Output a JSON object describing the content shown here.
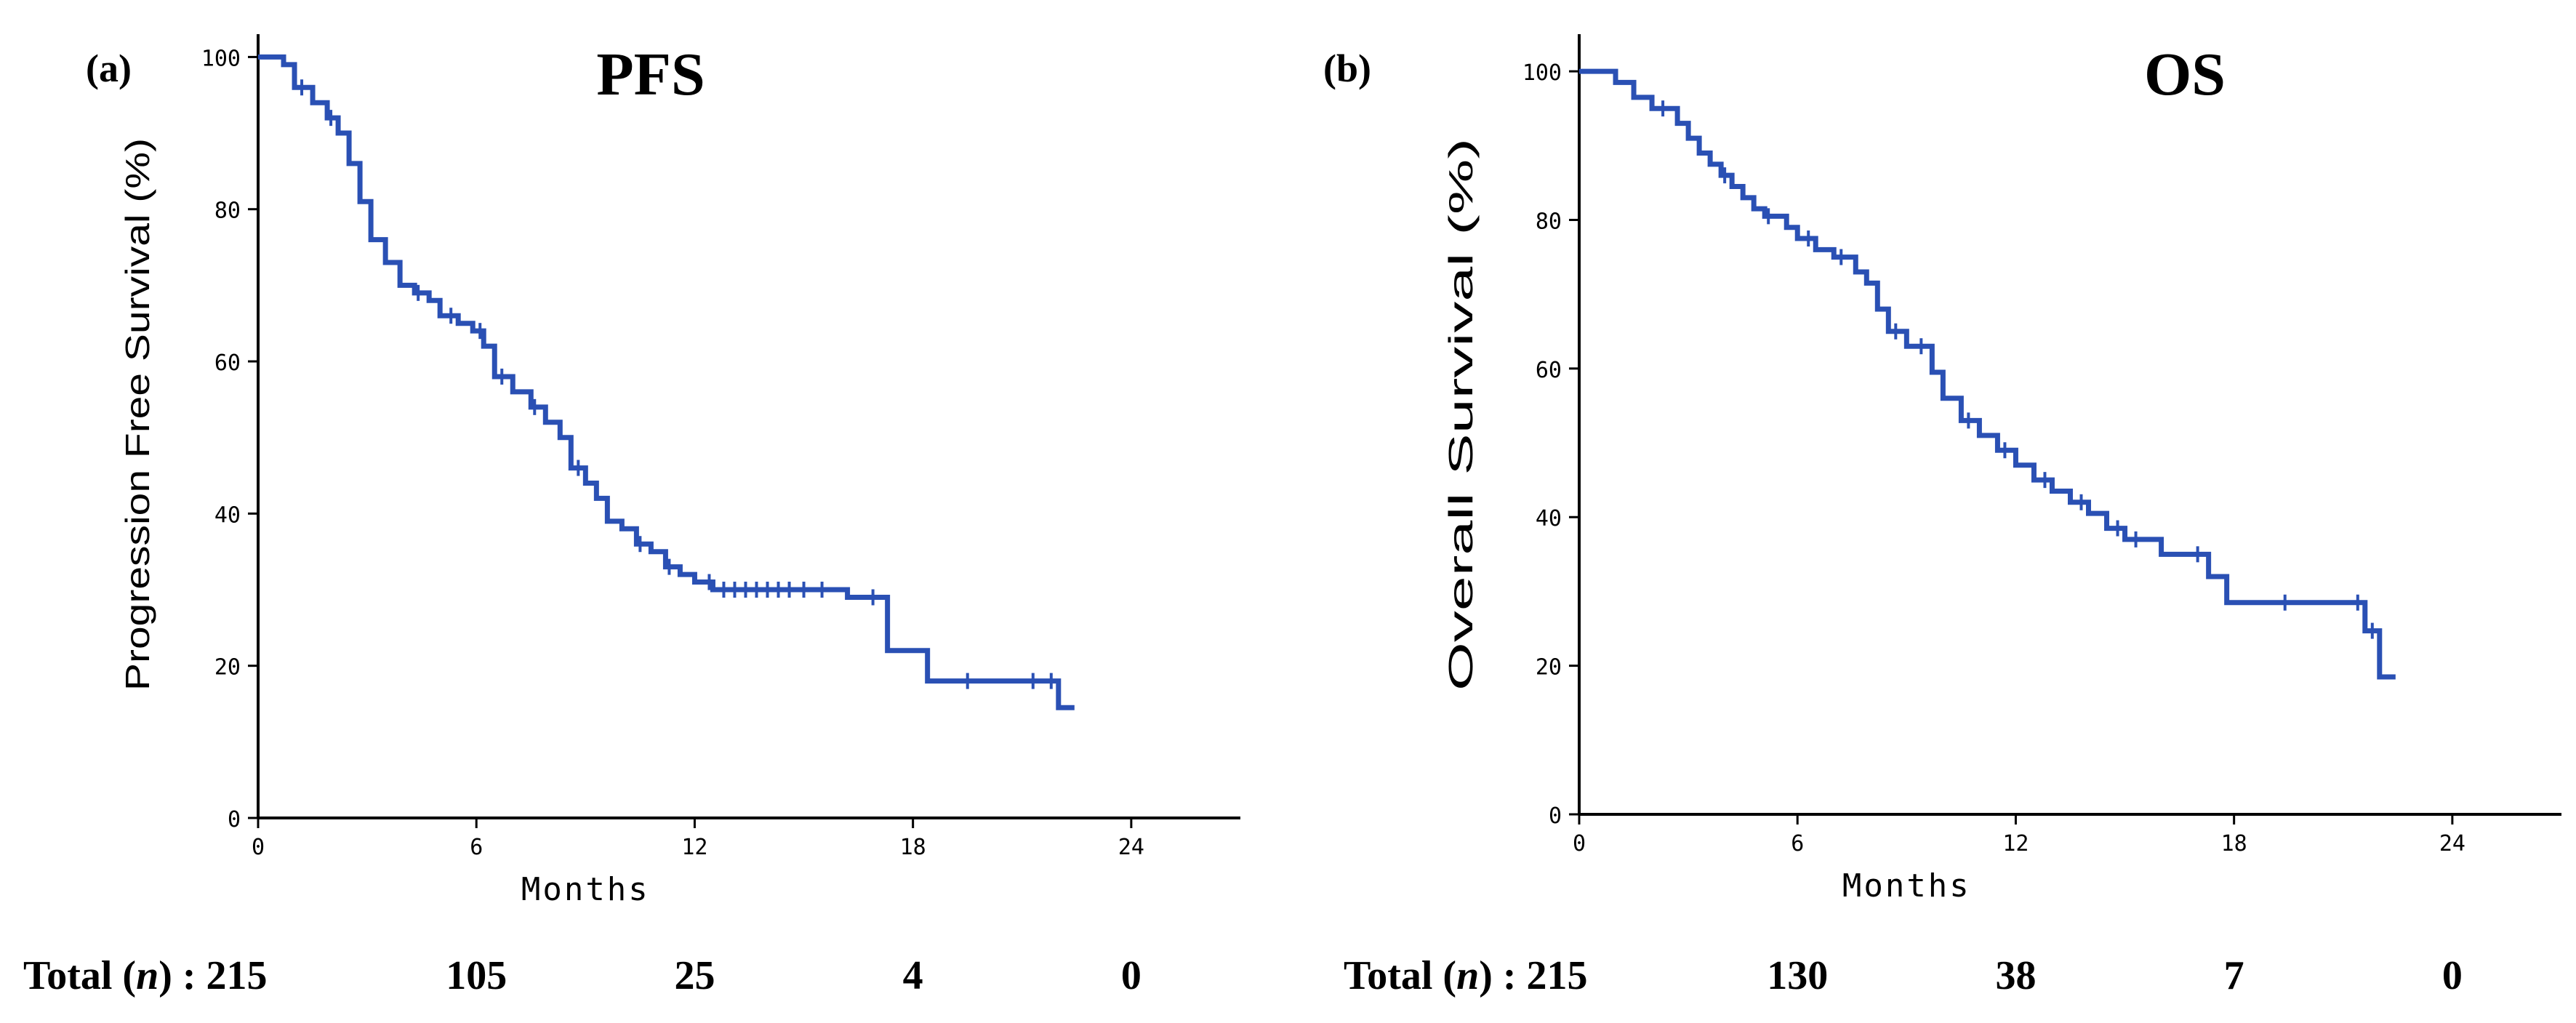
{
  "colors": {
    "curve": "#2a50b4",
    "axis": "#000000",
    "text": "#000000"
  },
  "chart_data": [
    {
      "type": "line",
      "step": true,
      "panel_label": "(a)",
      "title": "PFS",
      "xlabel": "Months",
      "ylabel": "Progression Free Survival (%)",
      "xlim": [
        0,
        27
      ],
      "ylim": [
        0,
        103
      ],
      "xticks": [
        0,
        6,
        12,
        18,
        24
      ],
      "yticks": [
        0,
        20,
        40,
        60,
        80,
        100
      ],
      "grid": false,
      "risk_table": {
        "label": "Total (n) : ",
        "label_text": "Total (",
        "label_italic": "n",
        "label_tail": ") : ",
        "values": [
          "215",
          "105",
          "25",
          "4",
          "0"
        ]
      },
      "series": [
        {
          "name": "PFS",
          "x": [
            0,
            0.7,
            1.0,
            1.5,
            1.9,
            2.2,
            2.5,
            2.8,
            3.1,
            3.5,
            3.9,
            4.3,
            4.7,
            5.0,
            5.5,
            5.9,
            6.2,
            6.5,
            7.0,
            7.5,
            7.9,
            8.3,
            8.6,
            9.0,
            9.3,
            9.6,
            10.0,
            10.4,
            10.8,
            11.2,
            11.6,
            12.0,
            12.5,
            16.2,
            17.3,
            18.4,
            22.0
          ],
          "y": [
            100,
            99,
            96,
            94,
            92,
            90,
            86,
            81,
            76,
            73,
            70,
            69,
            68,
            66,
            65,
            64,
            62,
            58,
            56,
            54,
            52,
            50,
            46,
            44,
            42,
            39,
            38,
            36,
            35,
            33,
            32,
            31,
            30,
            29,
            22,
            18,
            14.5
          ]
        }
      ],
      "censor_x": [
        1.2,
        2.0,
        4.4,
        5.3,
        6.1,
        6.7,
        7.6,
        8.8,
        10.5,
        11.3,
        12.4,
        12.8,
        13.1,
        13.4,
        13.7,
        14.0,
        14.3,
        14.6,
        15.0,
        15.5,
        16.9,
        19.5,
        21.3,
        21.8
      ]
    },
    {
      "type": "line",
      "step": true,
      "panel_label": "(b)",
      "title": "OS",
      "xlabel": "Months",
      "ylabel": "Overall Survival (%)",
      "xlim": [
        0,
        27
      ],
      "ylim": [
        0,
        105
      ],
      "xticks": [
        0,
        6,
        12,
        18,
        24
      ],
      "yticks": [
        0,
        20,
        40,
        60,
        80,
        100
      ],
      "grid": false,
      "risk_table": {
        "label": "Total (n) : ",
        "label_text": "Total (",
        "label_italic": "n",
        "label_tail": ") : ",
        "values": [
          "215",
          "130",
          "38",
          "7",
          "0"
        ]
      },
      "series": [
        {
          "name": "OS",
          "x": [
            0,
            1.0,
            1.5,
            2.0,
            2.7,
            3.0,
            3.3,
            3.6,
            3.9,
            4.2,
            4.5,
            4.8,
            5.1,
            5.7,
            6.0,
            6.5,
            7.0,
            7.6,
            7.9,
            8.2,
            8.5,
            9.0,
            9.7,
            10.0,
            10.5,
            11.0,
            11.5,
            12.0,
            12.5,
            13.0,
            13.5,
            14.0,
            14.5,
            15.0,
            16.0,
            17.3,
            17.8,
            21.6,
            22.0
          ],
          "y": [
            100,
            98.5,
            96.5,
            95,
            93,
            91,
            89,
            87.5,
            86,
            84.5,
            83,
            81.5,
            80.5,
            79,
            77.5,
            76,
            75,
            73,
            71.5,
            68,
            65,
            63,
            59.5,
            56,
            53,
            51,
            49,
            47,
            45,
            43.5,
            42,
            40.5,
            38.5,
            37,
            35,
            32,
            28.5,
            24.7,
            18.5
          ]
        }
      ],
      "censor_x": [
        2.3,
        4.0,
        5.2,
        6.3,
        7.2,
        8.7,
        9.4,
        10.7,
        11.7,
        12.8,
        13.8,
        14.8,
        15.3,
        17.0,
        19.4,
        21.4,
        21.8
      ]
    }
  ]
}
